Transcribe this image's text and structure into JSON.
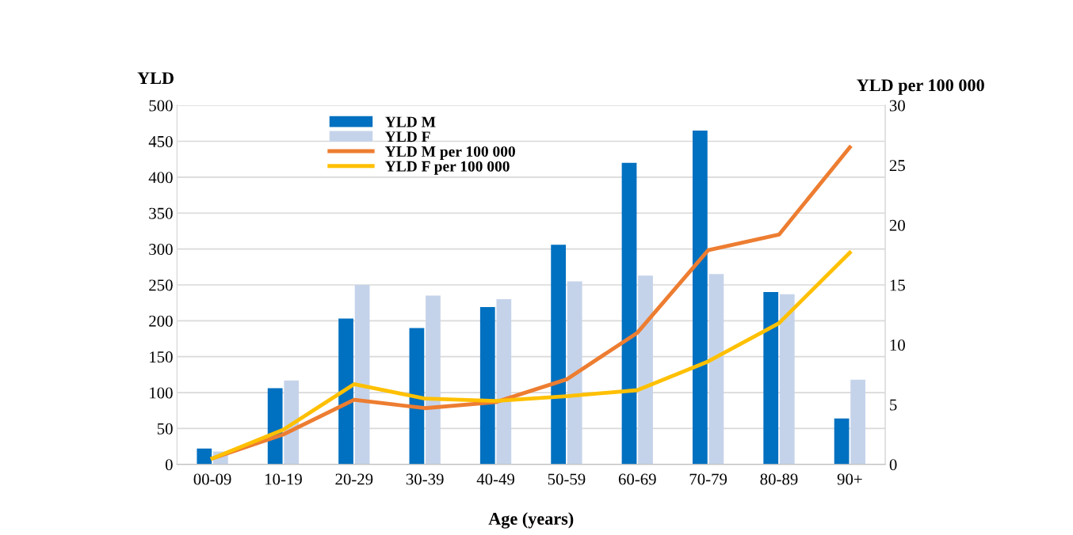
{
  "chart_data": {
    "type": "bar",
    "xlabel": "Age (years)",
    "ylabel": "YLD",
    "y2label": "YLD per 100 000",
    "categories": [
      "00-09",
      "10-19",
      "20-29",
      "30-39",
      "40-49",
      "50-59",
      "60-69",
      "70-79",
      "80-89",
      "90+"
    ],
    "series": [
      {
        "name": "YLD M",
        "color": "#0070c0",
        "values": [
          22,
          106,
          203,
          190,
          219,
          306,
          420,
          465,
          240,
          64
        ]
      },
      {
        "name": "YLD F",
        "color": "#c5d3ea",
        "values": [
          18,
          117,
          250,
          235,
          230,
          255,
          263,
          265,
          237,
          118
        ]
      },
      {
        "name": "YLD M per 100 000",
        "type": "line",
        "axis": "y2",
        "color": "#ed7d31",
        "values": [
          0.5,
          2.5,
          5.4,
          4.7,
          5.2,
          7.1,
          11.0,
          17.9,
          19.2,
          26.5
        ]
      },
      {
        "name": "YLD F per 100 000",
        "type": "line",
        "axis": "y2",
        "color": "#ffc000",
        "values": [
          0.5,
          2.9,
          6.7,
          5.5,
          5.3,
          5.7,
          6.2,
          8.6,
          11.8,
          17.7
        ]
      }
    ],
    "ylim": [
      0,
      500
    ],
    "yticks": [
      0,
      50,
      100,
      150,
      200,
      250,
      300,
      350,
      400,
      450,
      500
    ],
    "y2lim": [
      0,
      30
    ],
    "y2ticks": [
      0,
      5,
      10,
      15,
      20,
      25,
      30
    ],
    "grid": "y",
    "legend": "top left",
    "marker": "none",
    "line_style": "solid"
  }
}
